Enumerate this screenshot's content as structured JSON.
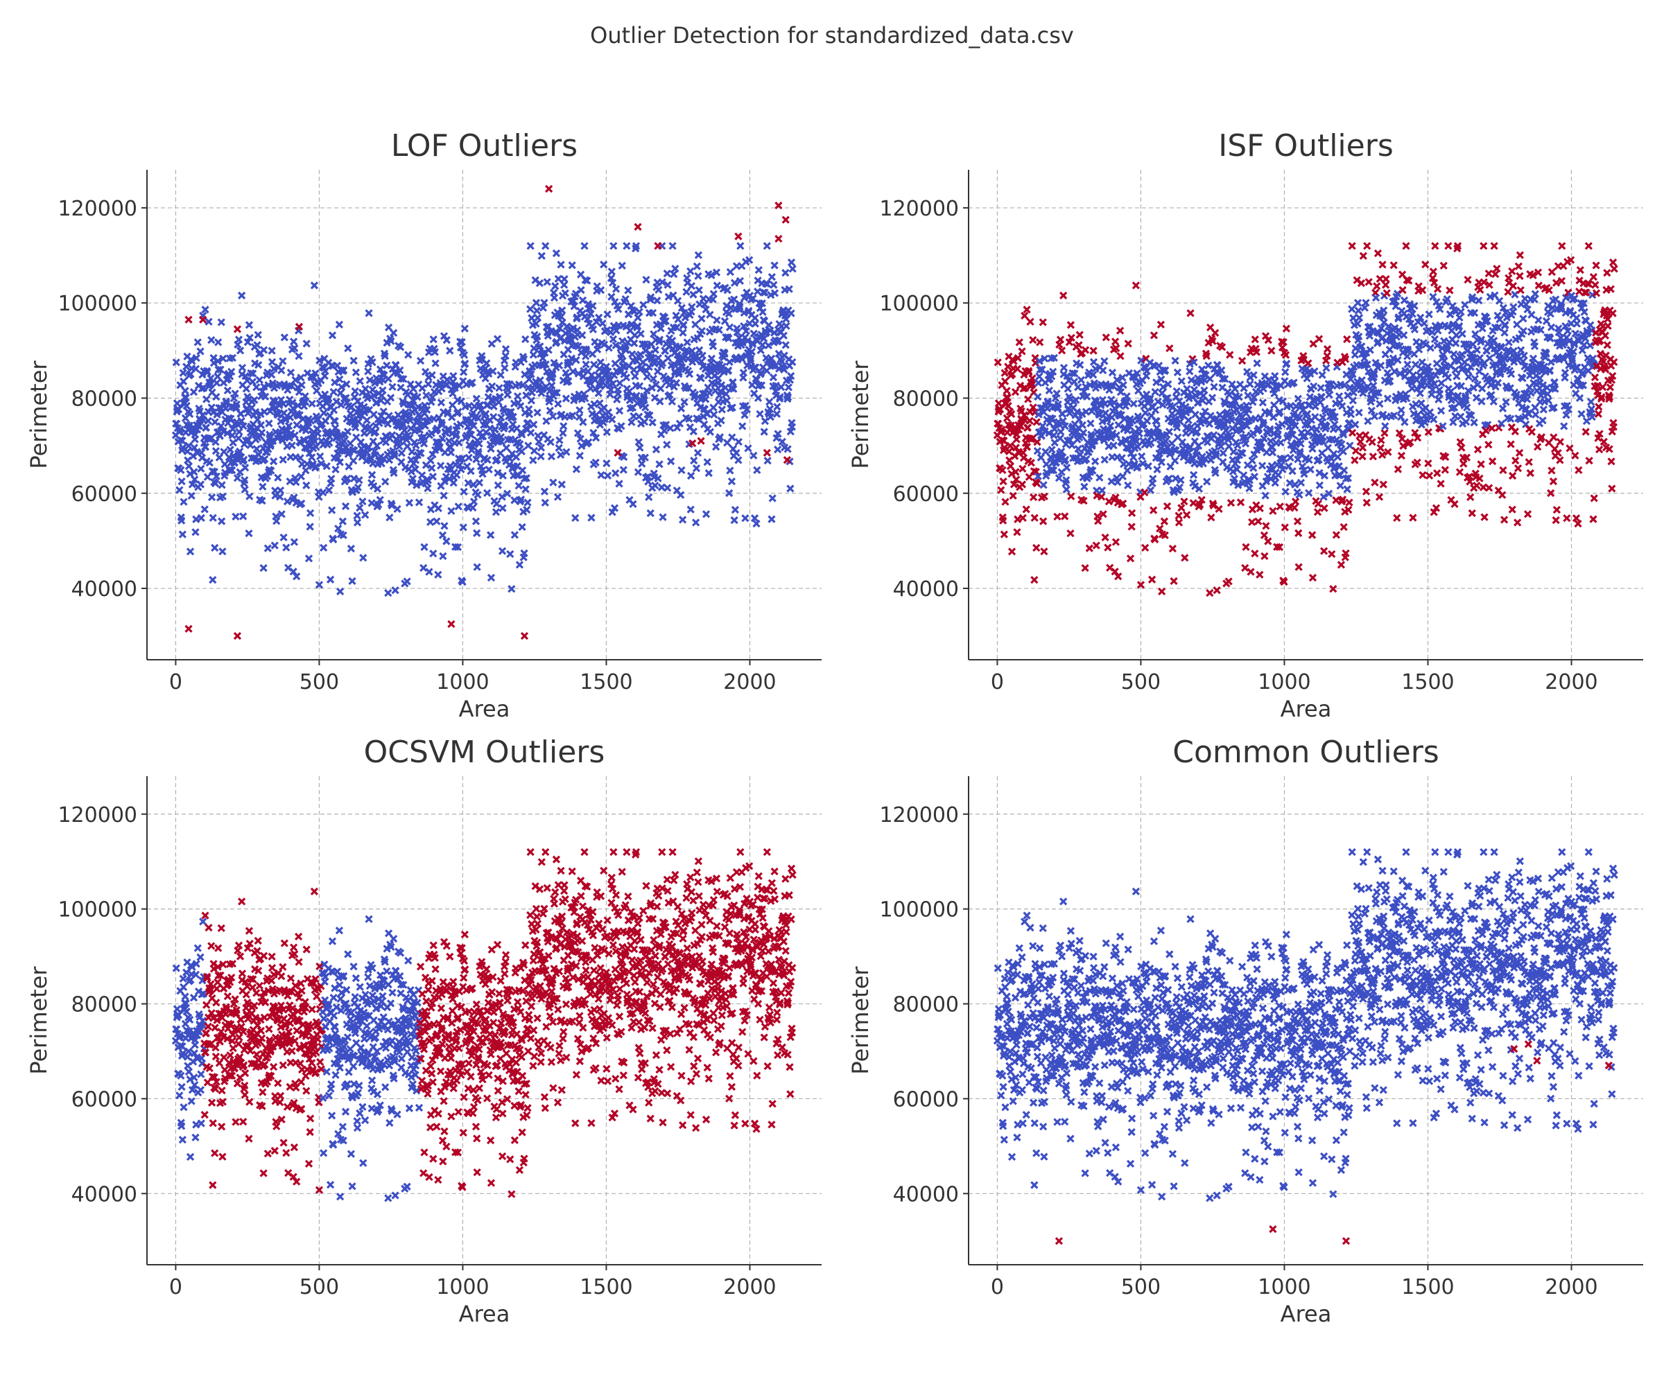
{
  "figure": {
    "title": "Outlier Detection for standardized_data.csv"
  },
  "colors": {
    "inlier": "#3d4fc4",
    "outlier": "#b40426",
    "grid": "#b0b0b0",
    "axis": "#333333"
  },
  "chart_data": [
    {
      "type": "scatter",
      "title": "LOF Outliers",
      "xlabel": "Area",
      "ylabel": "Perimeter",
      "xlim": [
        -100,
        2250
      ],
      "ylim": [
        25000,
        128000
      ],
      "xticks": [
        0,
        500,
        1000,
        1500,
        2000
      ],
      "yticks": [
        40000,
        60000,
        80000,
        100000,
        120000
      ],
      "grid": true,
      "marker": "x",
      "series": [
        {
          "role": "inlier",
          "source": "dataset",
          "count": 2150
        },
        {
          "role": "outlier",
          "source": "dataset",
          "count": 40
        }
      ],
      "outlier_rule": "lof",
      "outlier_points": [
        [
          45,
          31500
        ],
        [
          215,
          30000
        ],
        [
          1300,
          124000
        ],
        [
          1215,
          30000
        ],
        [
          2100,
          120500
        ],
        [
          2125,
          117500
        ],
        [
          2100,
          113500
        ],
        [
          1610,
          116000
        ],
        [
          1680,
          112000
        ],
        [
          1960,
          114000
        ],
        [
          960,
          32500
        ],
        [
          45,
          96500
        ],
        [
          95,
          96500
        ],
        [
          215,
          94500
        ],
        [
          430,
          95000
        ],
        [
          1800,
          70500
        ],
        [
          1830,
          71000
        ],
        [
          2130,
          67000
        ],
        [
          2060,
          68500
        ],
        [
          1540,
          68500
        ]
      ]
    },
    {
      "type": "scatter",
      "title": "ISF Outliers",
      "xlabel": "Area",
      "ylabel": "Perimeter",
      "xlim": [
        -100,
        2250
      ],
      "ylim": [
        25000,
        128000
      ],
      "xticks": [
        0,
        500,
        1000,
        1500,
        2000
      ],
      "yticks": [
        40000,
        60000,
        80000,
        100000,
        120000
      ],
      "grid": true,
      "marker": "x",
      "series": [
        {
          "role": "inlier",
          "source": "dataset"
        },
        {
          "role": "outlier",
          "source": "dataset"
        }
      ],
      "outlier_rule": "isf"
    },
    {
      "type": "scatter",
      "title": "OCSVM Outliers",
      "xlabel": "Area",
      "ylabel": "Perimeter",
      "xlim": [
        -100,
        2250
      ],
      "ylim": [
        25000,
        128000
      ],
      "xticks": [
        0,
        500,
        1000,
        1500,
        2000
      ],
      "yticks": [
        40000,
        60000,
        80000,
        100000,
        120000
      ],
      "grid": true,
      "marker": "x",
      "series": [
        {
          "role": "inlier",
          "source": "dataset"
        },
        {
          "role": "outlier",
          "source": "dataset"
        }
      ],
      "outlier_rule": "ocsvm"
    },
    {
      "type": "scatter",
      "title": "Common Outliers",
      "xlabel": "Area",
      "ylabel": "Perimeter",
      "xlim": [
        -100,
        2250
      ],
      "ylim": [
        25000,
        128000
      ],
      "xticks": [
        0,
        500,
        1000,
        1500,
        2000
      ],
      "yticks": [
        40000,
        60000,
        80000,
        100000,
        120000
      ],
      "grid": true,
      "marker": "x",
      "series": [
        {
          "role": "inlier",
          "source": "dataset"
        },
        {
          "role": "outlier",
          "source": "dataset"
        }
      ],
      "outlier_rule": "common",
      "outlier_points": [
        [
          215,
          30000
        ],
        [
          1215,
          30000
        ],
        [
          960,
          32500
        ],
        [
          2130,
          67000
        ],
        [
          1800,
          70500
        ],
        [
          1850,
          71500
        ],
        [
          1880,
          68000
        ]
      ]
    }
  ]
}
